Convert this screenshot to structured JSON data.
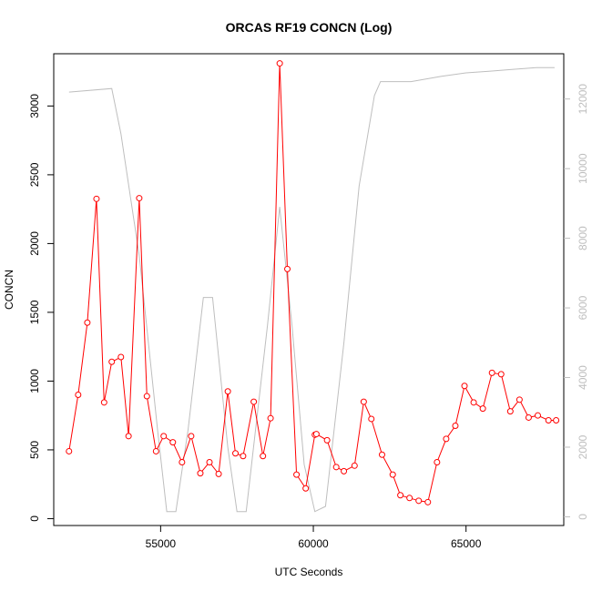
{
  "chart_data": {
    "type": "line",
    "title": "ORCAS RF19 CONCN (Log)",
    "xlabel": "UTC Seconds",
    "ylabel": "CONCN",
    "xlim": [
      51500,
      68200
    ],
    "ylim": [
      -50,
      3380
    ],
    "y2lim": [
      -250,
      13300
    ],
    "xticks": [
      "55000",
      "60000",
      "65000"
    ],
    "xtick_values": [
      55000,
      60000,
      65000
    ],
    "yticks": [
      "0",
      "500",
      "1000",
      "1500",
      "2000",
      "2500",
      "3000"
    ],
    "ytick_values": [
      0,
      500,
      1000,
      1500,
      2000,
      2500,
      3000
    ],
    "y2ticks": [
      "0",
      "2000",
      "4000",
      "6000",
      "8000",
      "10000",
      "12000"
    ],
    "y2tick_values": [
      0,
      2000,
      4000,
      6000,
      8000,
      10000,
      12000
    ],
    "colors": {
      "primary": "#ff0000",
      "secondary": "#bebebe",
      "axis": "#000000"
    },
    "series": [
      {
        "axis": "left",
        "style": "line-with-circle-markers",
        "color": "#ff0000",
        "x": [
          52000,
          52300,
          52600,
          52900,
          53150,
          53400,
          53700,
          53950,
          54300,
          54550,
          54850,
          55100,
          55400,
          55700,
          56000,
          56300,
          56600,
          56900,
          57200,
          57450,
          57700,
          58050,
          58350,
          58600,
          58900,
          59150,
          59450,
          59750,
          60050,
          60100,
          60450,
          60750,
          61000,
          61350,
          61650,
          61900,
          62250,
          62600,
          62850,
          63150,
          63450,
          63750,
          64050,
          64350,
          64650,
          64950,
          65250,
          65550,
          65850,
          66150,
          66450,
          66750,
          67050,
          67350,
          67700,
          67950
        ],
        "y": [
          490,
          900,
          1425,
          2325,
          845,
          1140,
          1175,
          600,
          2330,
          890,
          490,
          600,
          555,
          410,
          600,
          330,
          410,
          325,
          925,
          475,
          455,
          850,
          455,
          730,
          3310,
          1815,
          320,
          220,
          610,
          615,
          570,
          375,
          345,
          385,
          850,
          725,
          465,
          320,
          170,
          150,
          130,
          120,
          410,
          580,
          675,
          965,
          845,
          800,
          1060,
          1050,
          780,
          865,
          735,
          750,
          715,
          715
        ]
      },
      {
        "axis": "right",
        "style": "line",
        "color": "#bebebe",
        "x": [
          52000,
          53400,
          53700,
          54300,
          54900,
          55200,
          55500,
          55900,
          56400,
          56700,
          57200,
          57500,
          57800,
          58500,
          58900,
          59300,
          59700,
          60050,
          60400,
          61000,
          61500,
          62000,
          62200,
          63200,
          64200,
          65000,
          65800,
          66500,
          67300,
          67900
        ],
        "y": [
          12200,
          12300,
          11000,
          7500,
          2500,
          150,
          150,
          2500,
          6300,
          6300,
          2000,
          150,
          150,
          5500,
          8900,
          5500,
          1500,
          150,
          300,
          5000,
          9500,
          12100,
          12500,
          12500,
          12650,
          12750,
          12800,
          12850,
          12900,
          12900
        ]
      }
    ]
  }
}
